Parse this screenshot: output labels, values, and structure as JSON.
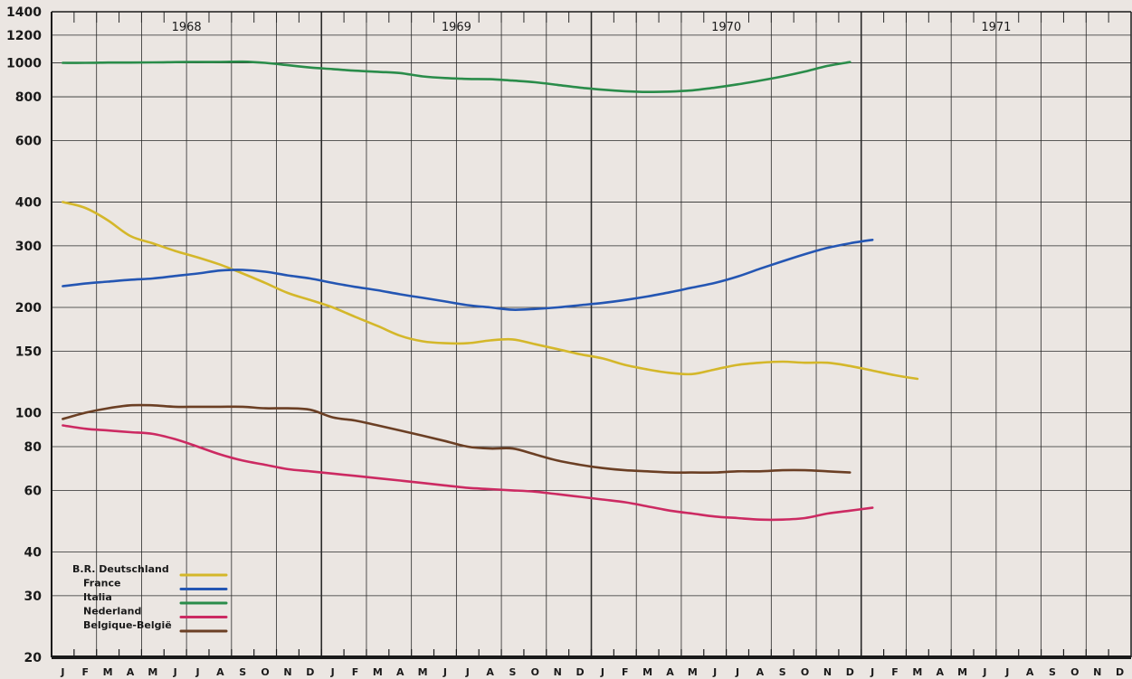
{
  "chart_data": {
    "type": "line",
    "y_scale": "log",
    "ylim": [
      20,
      1400
    ],
    "y_ticks": [
      20,
      30,
      40,
      60,
      80,
      100,
      150,
      200,
      300,
      400,
      600,
      800,
      1000,
      1200,
      1400
    ],
    "x_start": "1968-01",
    "x_end": "1971-12",
    "years": [
      "1968",
      "1969",
      "1970",
      "1971"
    ],
    "month_labels": [
      "J",
      "F",
      "M",
      "A",
      "M",
      "J",
      "J",
      "A",
      "S",
      "O",
      "N",
      "D"
    ],
    "grid": true,
    "legend_position": "bottom-left",
    "series": [
      {
        "name": "B.R. Deutschland",
        "color": "#d4b72a",
        "points": [
          [
            "1968-01",
            400
          ],
          [
            "1968-02",
            385
          ],
          [
            "1968-03",
            355
          ],
          [
            "1968-04",
            320
          ],
          [
            "1968-05",
            305
          ],
          [
            "1968-06",
            290
          ],
          [
            "1968-07",
            278
          ],
          [
            "1968-08",
            265
          ],
          [
            "1968-09",
            250
          ],
          [
            "1968-10",
            235
          ],
          [
            "1968-11",
            220
          ],
          [
            "1968-12",
            210
          ],
          [
            "1969-01",
            200
          ],
          [
            "1969-02",
            188
          ],
          [
            "1969-03",
            177
          ],
          [
            "1969-04",
            166
          ],
          [
            "1969-05",
            160
          ],
          [
            "1969-06",
            158
          ],
          [
            "1969-07",
            158
          ],
          [
            "1969-08",
            161
          ],
          [
            "1969-09",
            162
          ],
          [
            "1969-10",
            157
          ],
          [
            "1969-11",
            152
          ],
          [
            "1969-12",
            147
          ],
          [
            "1970-01",
            143
          ],
          [
            "1970-02",
            137
          ],
          [
            "1970-03",
            133
          ],
          [
            "1970-04",
            130
          ],
          [
            "1970-05",
            129
          ],
          [
            "1970-06",
            133
          ],
          [
            "1970-07",
            137
          ],
          [
            "1970-08",
            139
          ],
          [
            "1970-09",
            140
          ],
          [
            "1970-10",
            139
          ],
          [
            "1970-11",
            139
          ],
          [
            "1970-12",
            136
          ],
          [
            "1971-01",
            132
          ],
          [
            "1971-02",
            128
          ],
          [
            "1971-03",
            125
          ]
        ]
      },
      {
        "name": "France",
        "color": "#2456b3",
        "points": [
          [
            "1968-01",
            230
          ],
          [
            "1968-02",
            234
          ],
          [
            "1968-03",
            237
          ],
          [
            "1968-04",
            240
          ],
          [
            "1968-05",
            242
          ],
          [
            "1968-06",
            246
          ],
          [
            "1968-07",
            250
          ],
          [
            "1968-08",
            255
          ],
          [
            "1968-09",
            256
          ],
          [
            "1968-10",
            253
          ],
          [
            "1968-11",
            247
          ],
          [
            "1968-12",
            242
          ],
          [
            "1969-01",
            235
          ],
          [
            "1969-02",
            229
          ],
          [
            "1969-03",
            224
          ],
          [
            "1969-04",
            218
          ],
          [
            "1969-05",
            213
          ],
          [
            "1969-06",
            208
          ],
          [
            "1969-07",
            203
          ],
          [
            "1969-08",
            200
          ],
          [
            "1969-09",
            197
          ],
          [
            "1969-10",
            198
          ],
          [
            "1969-11",
            200
          ],
          [
            "1969-12",
            203
          ],
          [
            "1970-01",
            206
          ],
          [
            "1970-02",
            210
          ],
          [
            "1970-03",
            215
          ],
          [
            "1970-04",
            221
          ],
          [
            "1970-05",
            228
          ],
          [
            "1970-06",
            235
          ],
          [
            "1970-07",
            245
          ],
          [
            "1970-08",
            258
          ],
          [
            "1970-09",
            271
          ],
          [
            "1970-10",
            284
          ],
          [
            "1970-11",
            296
          ],
          [
            "1970-12",
            305
          ],
          [
            "1971-01",
            312
          ]
        ]
      },
      {
        "name": "Italia",
        "color": "#2a8c4a",
        "points": [
          [
            "1968-01",
            1000
          ],
          [
            "1968-02",
            1000
          ],
          [
            "1968-03",
            1002
          ],
          [
            "1968-04",
            1002
          ],
          [
            "1968-05",
            1003
          ],
          [
            "1968-06",
            1005
          ],
          [
            "1968-07",
            1006
          ],
          [
            "1968-08",
            1006
          ],
          [
            "1968-09",
            1008
          ],
          [
            "1968-10",
            1000
          ],
          [
            "1968-11",
            985
          ],
          [
            "1968-12",
            970
          ],
          [
            "1969-01",
            960
          ],
          [
            "1969-02",
            950
          ],
          [
            "1969-03",
            943
          ],
          [
            "1969-04",
            935
          ],
          [
            "1969-05",
            915
          ],
          [
            "1969-06",
            905
          ],
          [
            "1969-07",
            900
          ],
          [
            "1969-08",
            898
          ],
          [
            "1969-09",
            890
          ],
          [
            "1969-10",
            880
          ],
          [
            "1969-11",
            865
          ],
          [
            "1969-12",
            850
          ],
          [
            "1970-01",
            838
          ],
          [
            "1970-02",
            830
          ],
          [
            "1970-03",
            826
          ],
          [
            "1970-04",
            828
          ],
          [
            "1970-05",
            835
          ],
          [
            "1970-06",
            850
          ],
          [
            "1970-07",
            868
          ],
          [
            "1970-08",
            890
          ],
          [
            "1970-09",
            915
          ],
          [
            "1970-10",
            945
          ],
          [
            "1970-11",
            980
          ],
          [
            "1970-12",
            1005
          ]
        ]
      },
      {
        "name": "Nederland",
        "color": "#cc2a62",
        "points": [
          [
            "1968-01",
            92
          ],
          [
            "1968-02",
            90
          ],
          [
            "1968-03",
            89
          ],
          [
            "1968-04",
            88
          ],
          [
            "1968-05",
            87
          ],
          [
            "1968-06",
            84
          ],
          [
            "1968-07",
            80
          ],
          [
            "1968-08",
            76
          ],
          [
            "1968-09",
            73
          ],
          [
            "1968-10",
            71
          ],
          [
            "1968-11",
            69
          ],
          [
            "1968-12",
            68
          ],
          [
            "1969-01",
            67
          ],
          [
            "1969-02",
            66
          ],
          [
            "1969-03",
            65
          ],
          [
            "1969-04",
            64
          ],
          [
            "1969-05",
            63
          ],
          [
            "1969-06",
            62
          ],
          [
            "1969-07",
            61
          ],
          [
            "1969-08",
            60.5
          ],
          [
            "1969-09",
            60
          ],
          [
            "1969-10",
            59.5
          ],
          [
            "1969-11",
            58.5
          ],
          [
            "1969-12",
            57.5
          ],
          [
            "1970-01",
            56.5
          ],
          [
            "1970-02",
            55.5
          ],
          [
            "1970-03",
            54
          ],
          [
            "1970-04",
            52.5
          ],
          [
            "1970-05",
            51.5
          ],
          [
            "1970-06",
            50.5
          ],
          [
            "1970-07",
            50
          ],
          [
            "1970-08",
            49.5
          ],
          [
            "1970-09",
            49.5
          ],
          [
            "1970-10",
            50
          ],
          [
            "1970-11",
            51.5
          ],
          [
            "1970-12",
            52.5
          ],
          [
            "1971-01",
            53.5
          ]
        ]
      },
      {
        "name": "Belgique-België",
        "color": "#6b3f24",
        "points": [
          [
            "1968-01",
            96
          ],
          [
            "1968-02",
            100
          ],
          [
            "1968-03",
            103
          ],
          [
            "1968-04",
            105
          ],
          [
            "1968-05",
            105
          ],
          [
            "1968-06",
            104
          ],
          [
            "1968-07",
            104
          ],
          [
            "1968-08",
            104
          ],
          [
            "1968-09",
            104
          ],
          [
            "1968-10",
            103
          ],
          [
            "1968-11",
            103
          ],
          [
            "1968-12",
            102
          ],
          [
            "1969-01",
            97
          ],
          [
            "1969-02",
            95
          ],
          [
            "1969-03",
            92
          ],
          [
            "1969-04",
            89
          ],
          [
            "1969-05",
            86
          ],
          [
            "1969-06",
            83
          ],
          [
            "1969-07",
            80
          ],
          [
            "1969-08",
            79
          ],
          [
            "1969-09",
            79
          ],
          [
            "1969-10",
            76
          ],
          [
            "1969-11",
            73
          ],
          [
            "1969-12",
            71
          ],
          [
            "1970-01",
            69.5
          ],
          [
            "1970-02",
            68.5
          ],
          [
            "1970-03",
            68
          ],
          [
            "1970-04",
            67.5
          ],
          [
            "1970-05",
            67.5
          ],
          [
            "1970-06",
            67.5
          ],
          [
            "1970-07",
            68
          ],
          [
            "1970-08",
            68
          ],
          [
            "1970-09",
            68.5
          ],
          [
            "1970-10",
            68.5
          ],
          [
            "1970-11",
            68
          ],
          [
            "1970-12",
            67.5
          ]
        ]
      }
    ]
  }
}
